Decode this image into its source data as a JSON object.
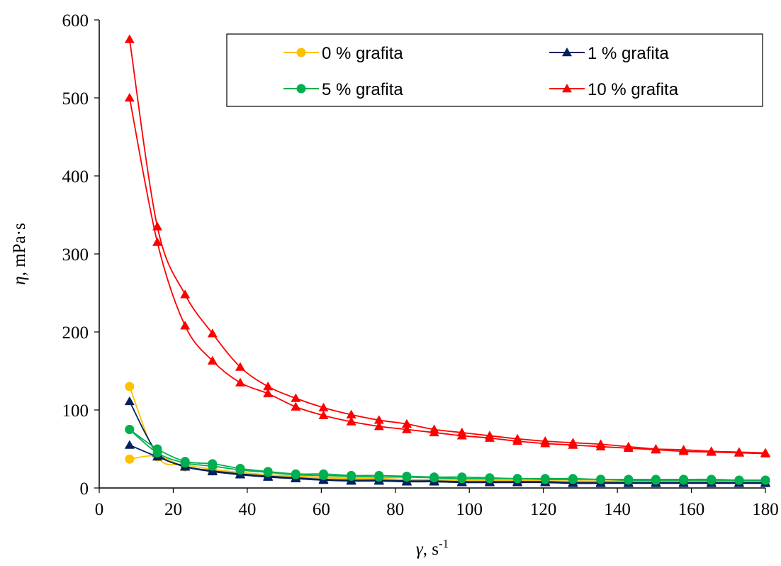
{
  "chart_data": {
    "type": "line",
    "title": "",
    "xlabel": {
      "symbol": "γ",
      "rest": ", s",
      "sup": "-1"
    },
    "ylabel": {
      "symbol": "η",
      "rest": ", mPa·s"
    },
    "xlim": [
      0,
      180
    ],
    "ylim": [
      0,
      600
    ],
    "xticks": [
      "0",
      "20",
      "40",
      "60",
      "80",
      "100",
      "120",
      "140",
      "160",
      "180"
    ],
    "yticks": [
      "0",
      "100",
      "200",
      "300",
      "400",
      "500",
      "600"
    ],
    "grid": false,
    "legend_position": "top-right",
    "x": [
      8.2,
      15.7,
      23.2,
      30.6,
      38.1,
      45.6,
      53.1,
      60.6,
      68.1,
      75.6,
      83.1,
      90.5,
      98.0,
      105.5,
      113.0,
      120.5,
      128.0,
      135.5,
      143.0,
      150.4,
      157.9,
      165.4,
      172.9,
      180.0
    ],
    "series": [
      {
        "name": "0 % grafita",
        "color": "#FFC000",
        "marker": "circle",
        "up": [
          37,
          41,
          27,
          22,
          19,
          16,
          14,
          13,
          12,
          11,
          10,
          10,
          9,
          9,
          9,
          8,
          8,
          8,
          8,
          8,
          8,
          8,
          8,
          8
        ],
        "down": [
          130,
          40,
          30,
          24,
          20,
          17,
          15,
          14,
          13,
          12,
          11,
          11,
          10,
          10,
          10,
          9,
          9,
          9,
          9,
          9,
          9,
          9,
          9,
          9
        ]
      },
      {
        "name": "1 % grafita",
        "color": "#002060",
        "marker": "triangle",
        "up": [
          55,
          40,
          27,
          21,
          17,
          14,
          12,
          10,
          9,
          9,
          8,
          8,
          7,
          7,
          7,
          7,
          6,
          6,
          6,
          6,
          6,
          6,
          6,
          6
        ],
        "down": [
          111,
          45,
          28,
          22,
          18,
          15,
          13,
          11,
          10,
          10,
          9,
          9,
          8,
          8,
          8,
          8,
          7,
          7,
          7,
          7,
          7,
          7,
          7,
          7
        ]
      },
      {
        "name": "5 % grafita",
        "color": "#00B050",
        "marker": "circle",
        "up": [
          75,
          50,
          34,
          31,
          25,
          21,
          18,
          18,
          16,
          16,
          15,
          14,
          14,
          13,
          12,
          12,
          12,
          11,
          11,
          11,
          11,
          11,
          10,
          10
        ],
        "down": [
          75,
          45,
          32,
          28,
          23,
          20,
          17,
          16,
          15,
          14,
          14,
          13,
          12,
          12,
          12,
          11,
          11,
          11,
          10,
          10,
          10,
          10,
          10,
          10
        ]
      },
      {
        "name": "10 % grafita",
        "color": "#FF0000",
        "marker": "triangle",
        "up": [
          500,
          315,
          208,
          163,
          135,
          121,
          104,
          93,
          85,
          79,
          75,
          71,
          67,
          64,
          60,
          57,
          55,
          53,
          51,
          49,
          47,
          46,
          45,
          44
        ],
        "down": [
          575,
          335,
          248,
          198,
          155,
          130,
          115,
          103,
          94,
          87,
          82,
          75,
          71,
          67,
          63,
          60,
          58,
          56,
          53,
          50,
          49,
          47,
          46,
          45
        ]
      }
    ]
  }
}
